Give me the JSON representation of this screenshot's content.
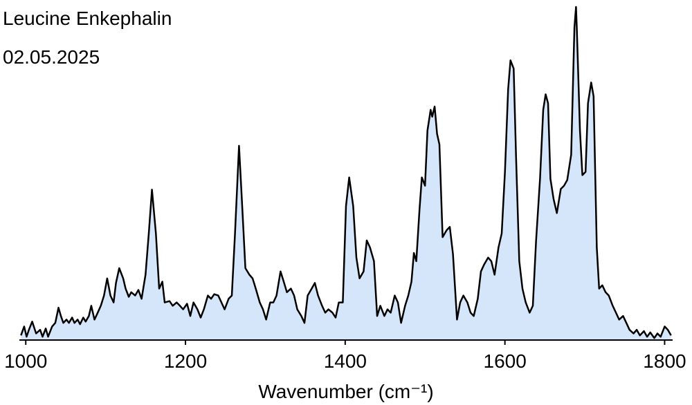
{
  "chart_data": {
    "type": "area",
    "title": "Leucine Enkephalin",
    "subtitle": "02.05.2025",
    "xlabel": "Wavenumber (cm⁻¹)",
    "xlim": [
      992,
      1810
    ],
    "xticks": [
      1000,
      1200,
      1400,
      1600,
      1800
    ],
    "ylim": [
      -1,
      100
    ],
    "color": "#d6e6fa",
    "line_color": "#000000",
    "x": [
      994,
      998,
      1001,
      1004,
      1008,
      1013,
      1018,
      1021,
      1025,
      1028,
      1033,
      1037,
      1041,
      1044,
      1047,
      1051,
      1054,
      1058,
      1061,
      1065,
      1068,
      1072,
      1075,
      1079,
      1082,
      1086,
      1089,
      1094,
      1098,
      1102,
      1106,
      1110,
      1113,
      1117,
      1122,
      1125,
      1129,
      1132,
      1137,
      1141,
      1145,
      1150,
      1154,
      1158,
      1163,
      1167,
      1171,
      1174,
      1180,
      1184,
      1189,
      1193,
      1197,
      1202,
      1206,
      1210,
      1215,
      1219,
      1223,
      1228,
      1232,
      1236,
      1241,
      1245,
      1249,
      1254,
      1258,
      1262,
      1267,
      1271,
      1275,
      1280,
      1284,
      1288,
      1293,
      1297,
      1301,
      1306,
      1310,
      1314,
      1319,
      1323,
      1327,
      1332,
      1336,
      1340,
      1345,
      1349,
      1353,
      1358,
      1362,
      1366,
      1371,
      1375,
      1379,
      1384,
      1388,
      1392,
      1397,
      1401,
      1405,
      1410,
      1414,
      1418,
      1423,
      1427,
      1431,
      1436,
      1440,
      1444,
      1449,
      1453,
      1457,
      1462,
      1466,
      1470,
      1475,
      1479,
      1483,
      1486,
      1489,
      1493,
      1496,
      1500,
      1503,
      1507,
      1509,
      1512,
      1515,
      1518,
      1522,
      1527,
      1531,
      1535,
      1540,
      1544,
      1548,
      1553,
      1557,
      1561,
      1566,
      1570,
      1574,
      1579,
      1583,
      1587,
      1592,
      1596,
      1600,
      1604,
      1607,
      1611,
      1614,
      1618,
      1622,
      1626,
      1631,
      1635,
      1639,
      1644,
      1648,
      1651,
      1654,
      1657,
      1661,
      1665,
      1670,
      1674,
      1678,
      1683,
      1687,
      1689,
      1690,
      1694,
      1697,
      1701,
      1704,
      1708,
      1711,
      1715,
      1718,
      1722,
      1726,
      1730,
      1735,
      1739,
      1743,
      1748,
      1752,
      1756,
      1761,
      1765,
      1769,
      1774,
      1778,
      1782,
      1787,
      1791,
      1795,
      1800,
      1804,
      1808
    ],
    "values": [
      0.4,
      3.1,
      0,
      2.1,
      4.6,
      1,
      2.1,
      0,
      2.5,
      0,
      3.1,
      4.2,
      8.8,
      6.3,
      4.2,
      5.2,
      4.2,
      5.8,
      4.2,
      5.2,
      3.8,
      5.8,
      4.6,
      6.3,
      9.4,
      5.2,
      6.7,
      9.4,
      12.5,
      17.7,
      12.5,
      10.4,
      16.3,
      20.8,
      17.7,
      14.6,
      12.1,
      13.5,
      12.5,
      14.2,
      11.5,
      18.8,
      31.3,
      44.6,
      31.3,
      14.6,
      16.7,
      10.4,
      10.8,
      9.4,
      10.4,
      9.4,
      8.3,
      10,
      6.3,
      10.4,
      8.3,
      5.8,
      8.3,
      12.5,
      11.5,
      12.9,
      12.5,
      10.4,
      8.3,
      11.5,
      12.5,
      31.3,
      57.9,
      39.6,
      20.8,
      18.8,
      17.7,
      14.6,
      10.4,
      8.3,
      5.2,
      10.4,
      10.4,
      12.5,
      19.8,
      16.7,
      13.5,
      14.6,
      12.5,
      8.3,
      6.3,
      4.2,
      12.5,
      14.6,
      16.3,
      12.5,
      9.4,
      7.3,
      8.3,
      7.3,
      5.8,
      10.4,
      10.4,
      39.6,
      48.3,
      39.6,
      24,
      17.7,
      19.8,
      29.2,
      27.1,
      22.9,
      6.3,
      9.4,
      6.3,
      8.3,
      7.3,
      12.5,
      10.4,
      4.2,
      9.4,
      12.5,
      16.7,
      25.4,
      22.9,
      38.5,
      48.3,
      45.8,
      62.5,
      68.8,
      66.7,
      69.8,
      61.5,
      58.3,
      30.2,
      32.3,
      33.3,
      25,
      5.2,
      10.4,
      12.5,
      10.4,
      7.3,
      6.3,
      11.5,
      19.8,
      21.9,
      24,
      22.9,
      18.8,
      27.1,
      31.3,
      50,
      75,
      83.8,
      81.3,
      54.2,
      22.9,
      14.6,
      10.4,
      7.3,
      9.4,
      29.2,
      47.9,
      68.8,
      73.5,
      70.8,
      47.9,
      41.7,
      37.5,
      44.8,
      45.8,
      47.5,
      55.2,
      93.8,
      100,
      93.8,
      62.5,
      49,
      50,
      70.8,
      77.1,
      72.9,
      27.1,
      14.6,
      15.6,
      13.5,
      12.5,
      9.4,
      7.3,
      5.2,
      6.3,
      4.2,
      2.1,
      1,
      2.1,
      0.4,
      1.7,
      0,
      1.3,
      -0.4,
      1,
      0,
      3.1,
      2.1,
      0.4
    ]
  }
}
